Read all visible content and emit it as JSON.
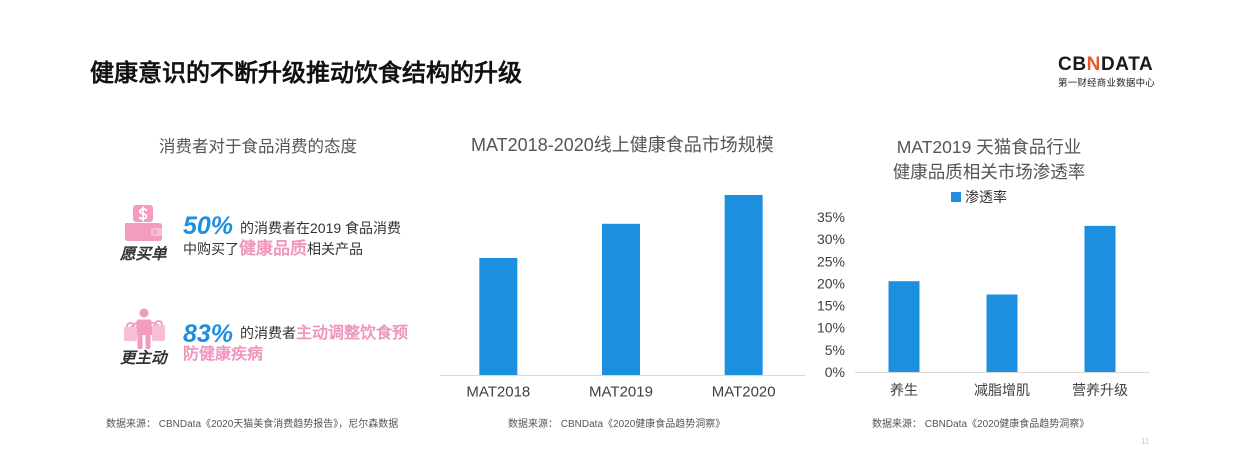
{
  "slide": {
    "title": "健康意识的不断升级推动饮食结构的升级",
    "page_number": "11"
  },
  "logo": {
    "brand_parts": [
      "CB",
      "N",
      "DATA"
    ],
    "subtitle": "第一财经商业数据中心"
  },
  "colors": {
    "accent_blue": "#1c8fdf",
    "highlight_pink": "#f096be",
    "icon_pink": "#f29cc0"
  },
  "left_panel": {
    "heading": "消费者对于食品消费的态度",
    "items": [
      {
        "icon": "wallet-dollar-icon",
        "label": "愿买单",
        "percent": "50%",
        "line1": [
          {
            "text": "的消费者在2019 食品消费",
            "highlight": false
          }
        ],
        "line2": [
          {
            "text": "中购买了",
            "highlight": false
          },
          {
            "text": "健康品质",
            "highlight": true
          },
          {
            "text": "相关产品",
            "highlight": false
          }
        ]
      },
      {
        "icon": "shopper-bags-icon",
        "label": "更主动",
        "percent": "83%",
        "line1": [
          {
            "text": "的消费者",
            "highlight": false
          },
          {
            "text": "主动调整饮食预",
            "highlight": true
          }
        ],
        "line2": [
          {
            "text": "防健康疾病",
            "highlight": true
          }
        ]
      }
    ],
    "source": "数据来源： CBNData《2020天猫美食消费趋势报告》，尼尔森数据"
  },
  "chart_data": [
    {
      "type": "bar",
      "title": "MAT2018-2020线上健康食品市场规模",
      "categories": [
        "MAT2018",
        "MAT2019",
        "MAT2020"
      ],
      "values": [
        65,
        84,
        100
      ],
      "ylim": [
        0,
        100
      ],
      "grid": false,
      "color": "#1c8fdf",
      "source": "数据来源： CBNData《2020健康食品趋势洞察》"
    },
    {
      "type": "bar",
      "title": [
        "MAT2019 天猫食品行业",
        "健康品质相关市场渗透率"
      ],
      "categories": [
        "养生",
        "减脂增肌",
        "营养升级"
      ],
      "series": [
        {
          "name": "渗透率",
          "values": [
            20.5,
            17.5,
            33
          ],
          "color": "#1c8fdf"
        }
      ],
      "ylim": [
        0,
        35
      ],
      "yticks": [
        0,
        5,
        10,
        15,
        20,
        25,
        30,
        35
      ],
      "ytick_labels": [
        "0%",
        "5%",
        "10%",
        "15%",
        "20%",
        "25%",
        "30%",
        "35%"
      ],
      "grid": false,
      "legend": "top",
      "source": "数据来源： CBNData《2020健康食品趋势洞察》"
    }
  ]
}
